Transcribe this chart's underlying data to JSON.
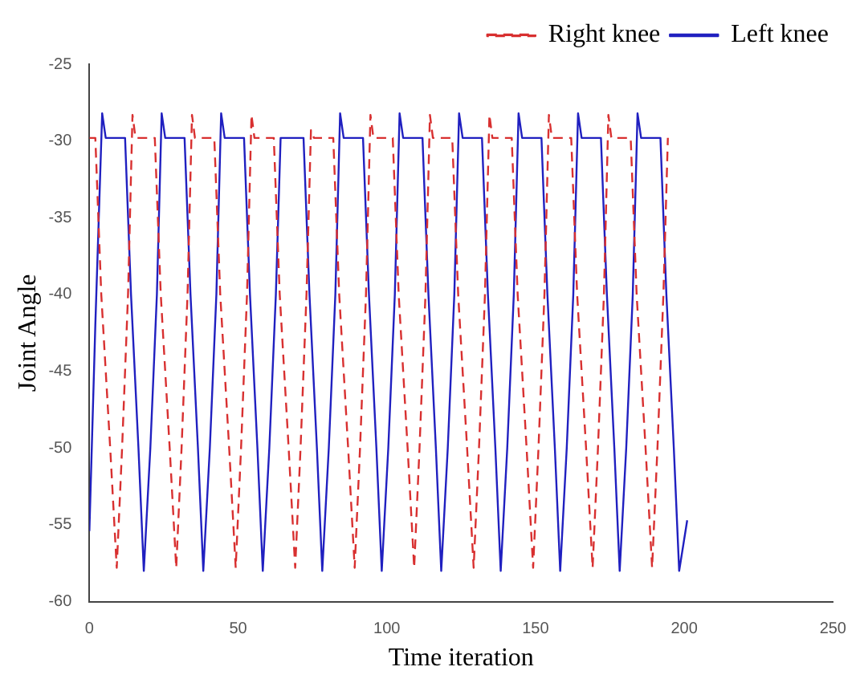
{
  "chart_data": {
    "type": "line",
    "xlabel": "Time iteration",
    "ylabel": "Joint Angle",
    "xlim": [
      0,
      250
    ],
    "ylim": [
      -60,
      -25
    ],
    "xticks": [
      0,
      50,
      100,
      150,
      200,
      250
    ],
    "yticks": [
      -60,
      -55,
      -50,
      -45,
      -40,
      -35,
      -30,
      -25
    ],
    "grid": false,
    "legend": "top right",
    "marker": "none",
    "series": [
      {
        "name": "Right knee",
        "color": "#d83030",
        "line_style": "dashed",
        "x": [
          0,
          2,
          4,
          7,
          9.2,
          11,
          13,
          14.5,
          15.5,
          22,
          24,
          27,
          29.2,
          31,
          33,
          34.5,
          35.5,
          42,
          44,
          47,
          49.2,
          51,
          53,
          54.5,
          55.5,
          62,
          64,
          67,
          69.2,
          71,
          73,
          74.5,
          75.5,
          82,
          84,
          87,
          89.2,
          91,
          93,
          94.5,
          95.5,
          102,
          104,
          107,
          109.2,
          111,
          113,
          114.5,
          115.5,
          122,
          124,
          127,
          129.2,
          131,
          133,
          134.5,
          135.5,
          142,
          144,
          147,
          149.2,
          151,
          153,
          154.5,
          155.5,
          162,
          164,
          167,
          169.2,
          171,
          173,
          174.5,
          175.5,
          182,
          184,
          187,
          189.2,
          191,
          193,
          194.5
        ],
        "values": [
          -29.8,
          -29.8,
          -40,
          -50,
          -57.8,
          -50,
          -40,
          -28.3,
          -29.8,
          -29.8,
          -40,
          -50,
          -57.8,
          -50,
          -40,
          -28.3,
          -29.8,
          -29.8,
          -40,
          -50,
          -57.8,
          -50,
          -40,
          -28.3,
          -29.8,
          -29.8,
          -40,
          -50,
          -57.8,
          -50,
          -40,
          -29.3,
          -29.8,
          -29.8,
          -40,
          -50,
          -57.8,
          -50,
          -40,
          -28.3,
          -29.8,
          -29.8,
          -40,
          -50,
          -57.8,
          -50,
          -40,
          -28.3,
          -29.8,
          -29.8,
          -40,
          -50,
          -57.8,
          -50,
          -40,
          -28.3,
          -29.8,
          -29.8,
          -40,
          -50,
          -57.8,
          -50,
          -40,
          -28.3,
          -29.8,
          -29.8,
          -40,
          -50,
          -57.8,
          -50,
          -40,
          -28.3,
          -29.8,
          -29.8,
          -40,
          -50,
          -57.8,
          -50,
          -40,
          -29.8
        ]
      },
      {
        "name": "Left knee",
        "color": "#2020c0",
        "line_style": "solid",
        "x": [
          0,
          2,
          4.3,
          5.5,
          12,
          14,
          16.5,
          18.3,
          20.5,
          22.7,
          24.3,
          25.5,
          32,
          34,
          36.5,
          38.3,
          40.5,
          42.7,
          44.3,
          45.5,
          52,
          54,
          56.5,
          58.3,
          60.5,
          62.7,
          64.3,
          65.5,
          72,
          74,
          76.5,
          78.3,
          80.5,
          82.7,
          84.3,
          85.5,
          92,
          94,
          96.5,
          98.3,
          100.5,
          102.7,
          104.3,
          105.5,
          112,
          114,
          116.5,
          118.3,
          120.5,
          122.7,
          124.3,
          125.5,
          132,
          134,
          136.5,
          138.3,
          140.5,
          142.7,
          144.3,
          145.5,
          152,
          154,
          156.5,
          158.3,
          160.5,
          162.7,
          164.3,
          165.5,
          172,
          174,
          176.5,
          178.3,
          180.5,
          182.7,
          184.3,
          185.5,
          192,
          194,
          196.5,
          198.3,
          201
        ],
        "values": [
          -55.4,
          -42,
          -28.2,
          -29.8,
          -29.8,
          -40,
          -50,
          -58,
          -50,
          -40,
          -28.2,
          -29.8,
          -29.8,
          -40,
          -50,
          -58,
          -50,
          -40,
          -28.2,
          -29.8,
          -29.8,
          -40,
          -50,
          -58,
          -50,
          -40,
          -29.8,
          -29.8,
          -29.8,
          -40,
          -50,
          -58,
          -50,
          -40,
          -28.2,
          -29.8,
          -29.8,
          -40,
          -50,
          -58,
          -50,
          -40,
          -28.2,
          -29.8,
          -29.8,
          -40,
          -50,
          -58,
          -50,
          -40,
          -28.2,
          -29.8,
          -29.8,
          -40,
          -50,
          -58,
          -50,
          -40,
          -28.2,
          -29.8,
          -29.8,
          -40,
          -50,
          -58,
          -50,
          -40,
          -28.2,
          -29.8,
          -29.8,
          -40,
          -50,
          -58,
          -50,
          -40,
          -28.2,
          -29.8,
          -29.8,
          -40,
          -50,
          -58,
          -54.7
        ]
      }
    ]
  }
}
